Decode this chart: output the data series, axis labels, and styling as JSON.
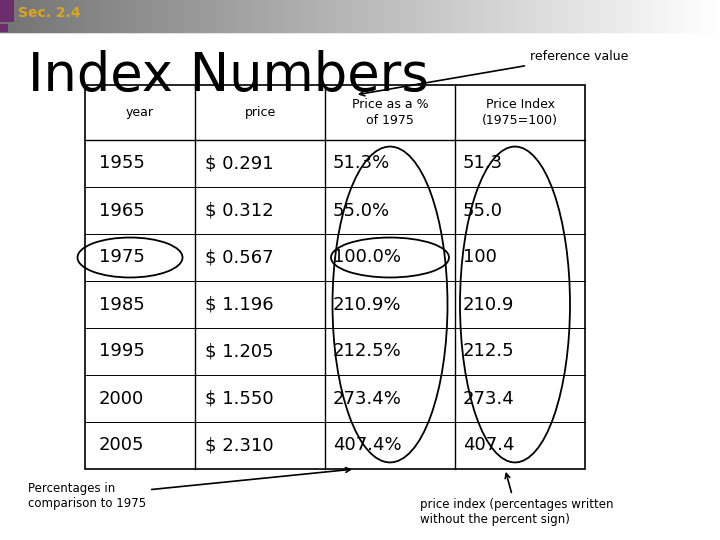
{
  "title": "Index Numbers",
  "section": "Sec. 2.4",
  "section_color": "#DAA520",
  "years": [
    "1955",
    "1965",
    "1975",
    "1985",
    "1995",
    "2000",
    "2005"
  ],
  "prices": [
    "$ 0.291",
    "$ 0.312",
    "$ 0.567",
    "$ 1.196",
    "$ 1.205",
    "$ 1.550",
    "$ 2.310"
  ],
  "pct_of_1975": [
    "51.3%",
    "55.0%",
    "100.0%",
    "210.9%",
    "212.5%",
    "273.4%",
    "407.4%"
  ],
  "price_index": [
    "51.3",
    "55.0",
    "100",
    "210.9",
    "212.5",
    "273.4",
    "407.4"
  ],
  "col_headers_line1": [
    "year",
    "price",
    "Price as a %",
    "Price Index"
  ],
  "col_headers_line2": [
    "",
    "",
    "of 1975",
    "(1975=100)"
  ],
  "annotation_ref": "reference value",
  "annotation_pct": "Percentages in\ncomparison to 1975",
  "annotation_idx": "price index (percentages written\nwithout the percent sign)"
}
